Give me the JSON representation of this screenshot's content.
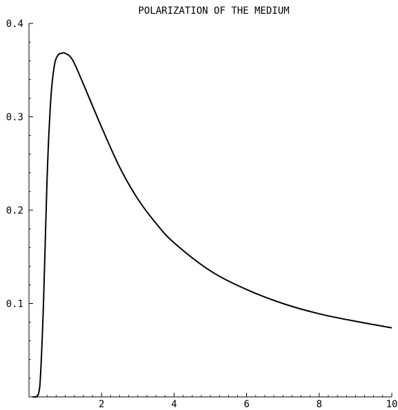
{
  "chart_data": {
    "type": "line",
    "title": "POLARIZATION OF THE MEDIUM",
    "xlabel": "",
    "ylabel": "",
    "xlim": [
      0,
      10
    ],
    "ylim": [
      0,
      0.4
    ],
    "x_ticks": [
      2,
      4,
      6,
      8,
      10
    ],
    "y_ticks": [
      0.1,
      0.2,
      0.3,
      0.4
    ],
    "x_tick_labels": [
      "2",
      "4",
      "6",
      "8",
      "10"
    ],
    "y_tick_labels": [
      "0.1",
      "0.2",
      "0.3",
      "0.4"
    ],
    "grid": false,
    "line_color": "#000000",
    "series": [
      {
        "x": [
          0.1,
          0.2,
          0.3,
          0.4,
          0.5,
          0.6,
          0.7,
          0.8,
          0.9,
          1.0,
          1.2,
          1.5,
          2.0,
          2.5,
          3.0,
          3.5,
          4.0,
          5.0,
          6.0,
          7.0,
          8.0,
          9.0,
          10.0
        ],
        "y": [
          0.0,
          0.0,
          0.012,
          0.1,
          0.235,
          0.318,
          0.355,
          0.366,
          0.368,
          0.368,
          0.361,
          0.335,
          0.289,
          0.246,
          0.212,
          0.186,
          0.165,
          0.135,
          0.115,
          0.1,
          0.089,
          0.081,
          0.074
        ]
      }
    ]
  }
}
